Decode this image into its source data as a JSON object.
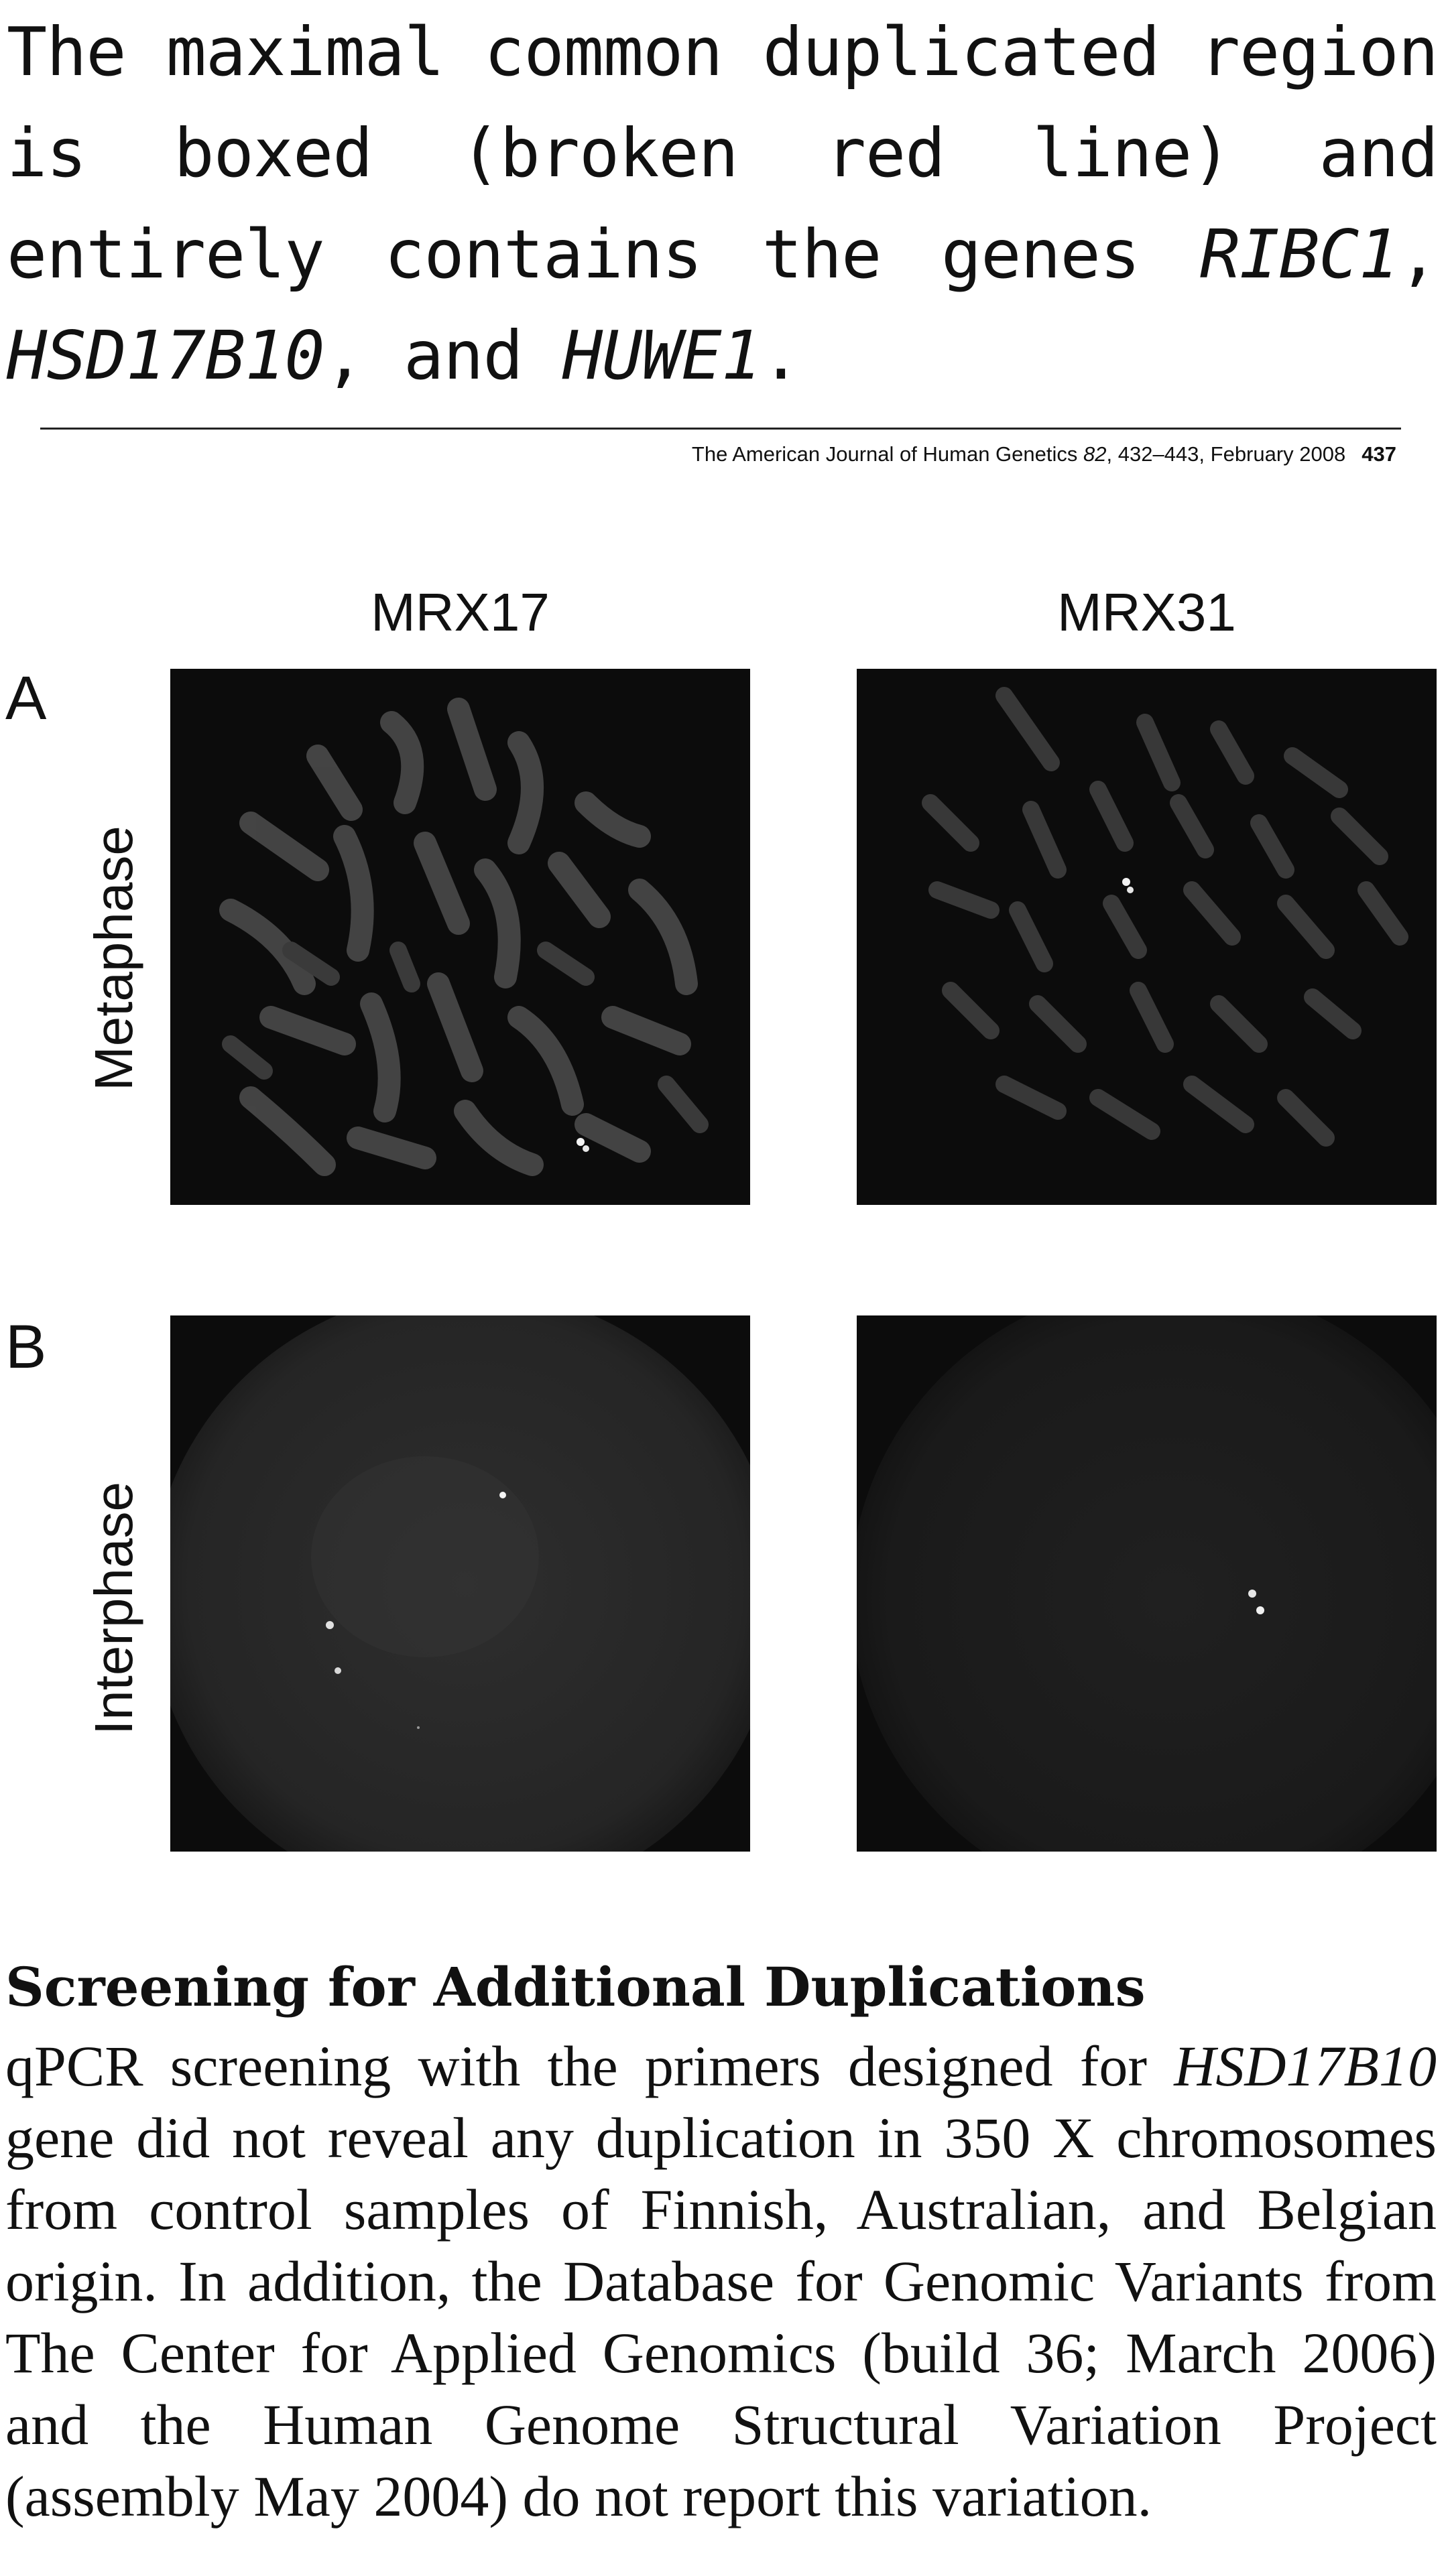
{
  "intro": {
    "text_1": "The maximal common duplicated region is boxed (broken red line) and entirely contains the genes ",
    "gene_1": "RIBC1",
    "sep_1": ", ",
    "gene_2": "HSD17B10",
    "sep_2": ", and ",
    "gene_3": "HUWE1",
    "end": "."
  },
  "footer": {
    "journal": "The American Journal of Human Genetics",
    "volume": "82",
    "pages_date": ", 432–443, February 2008",
    "page_number": "437"
  },
  "figure": {
    "columns": [
      "MRX17",
      "MRX31"
    ],
    "panels": [
      {
        "letter": "A",
        "row_label": "Metaphase"
      },
      {
        "letter": "B",
        "row_label": "Interphase"
      }
    ]
  },
  "section": {
    "title": "Screening for Additional Duplications",
    "p1": "qPCR screening with the primers designed for ",
    "gene": "HSD17B10",
    "p2": " gene did not reveal any duplication in 350 X chromosomes from control samples of Finnish, Australian, and Belgian origin. In addition, the Database for Genomic Variants from The Center for Applied Genomics (build 36; March 2006) and the Human Genome Structural Variation Project (assembly May 2004) do not report this variation."
  }
}
